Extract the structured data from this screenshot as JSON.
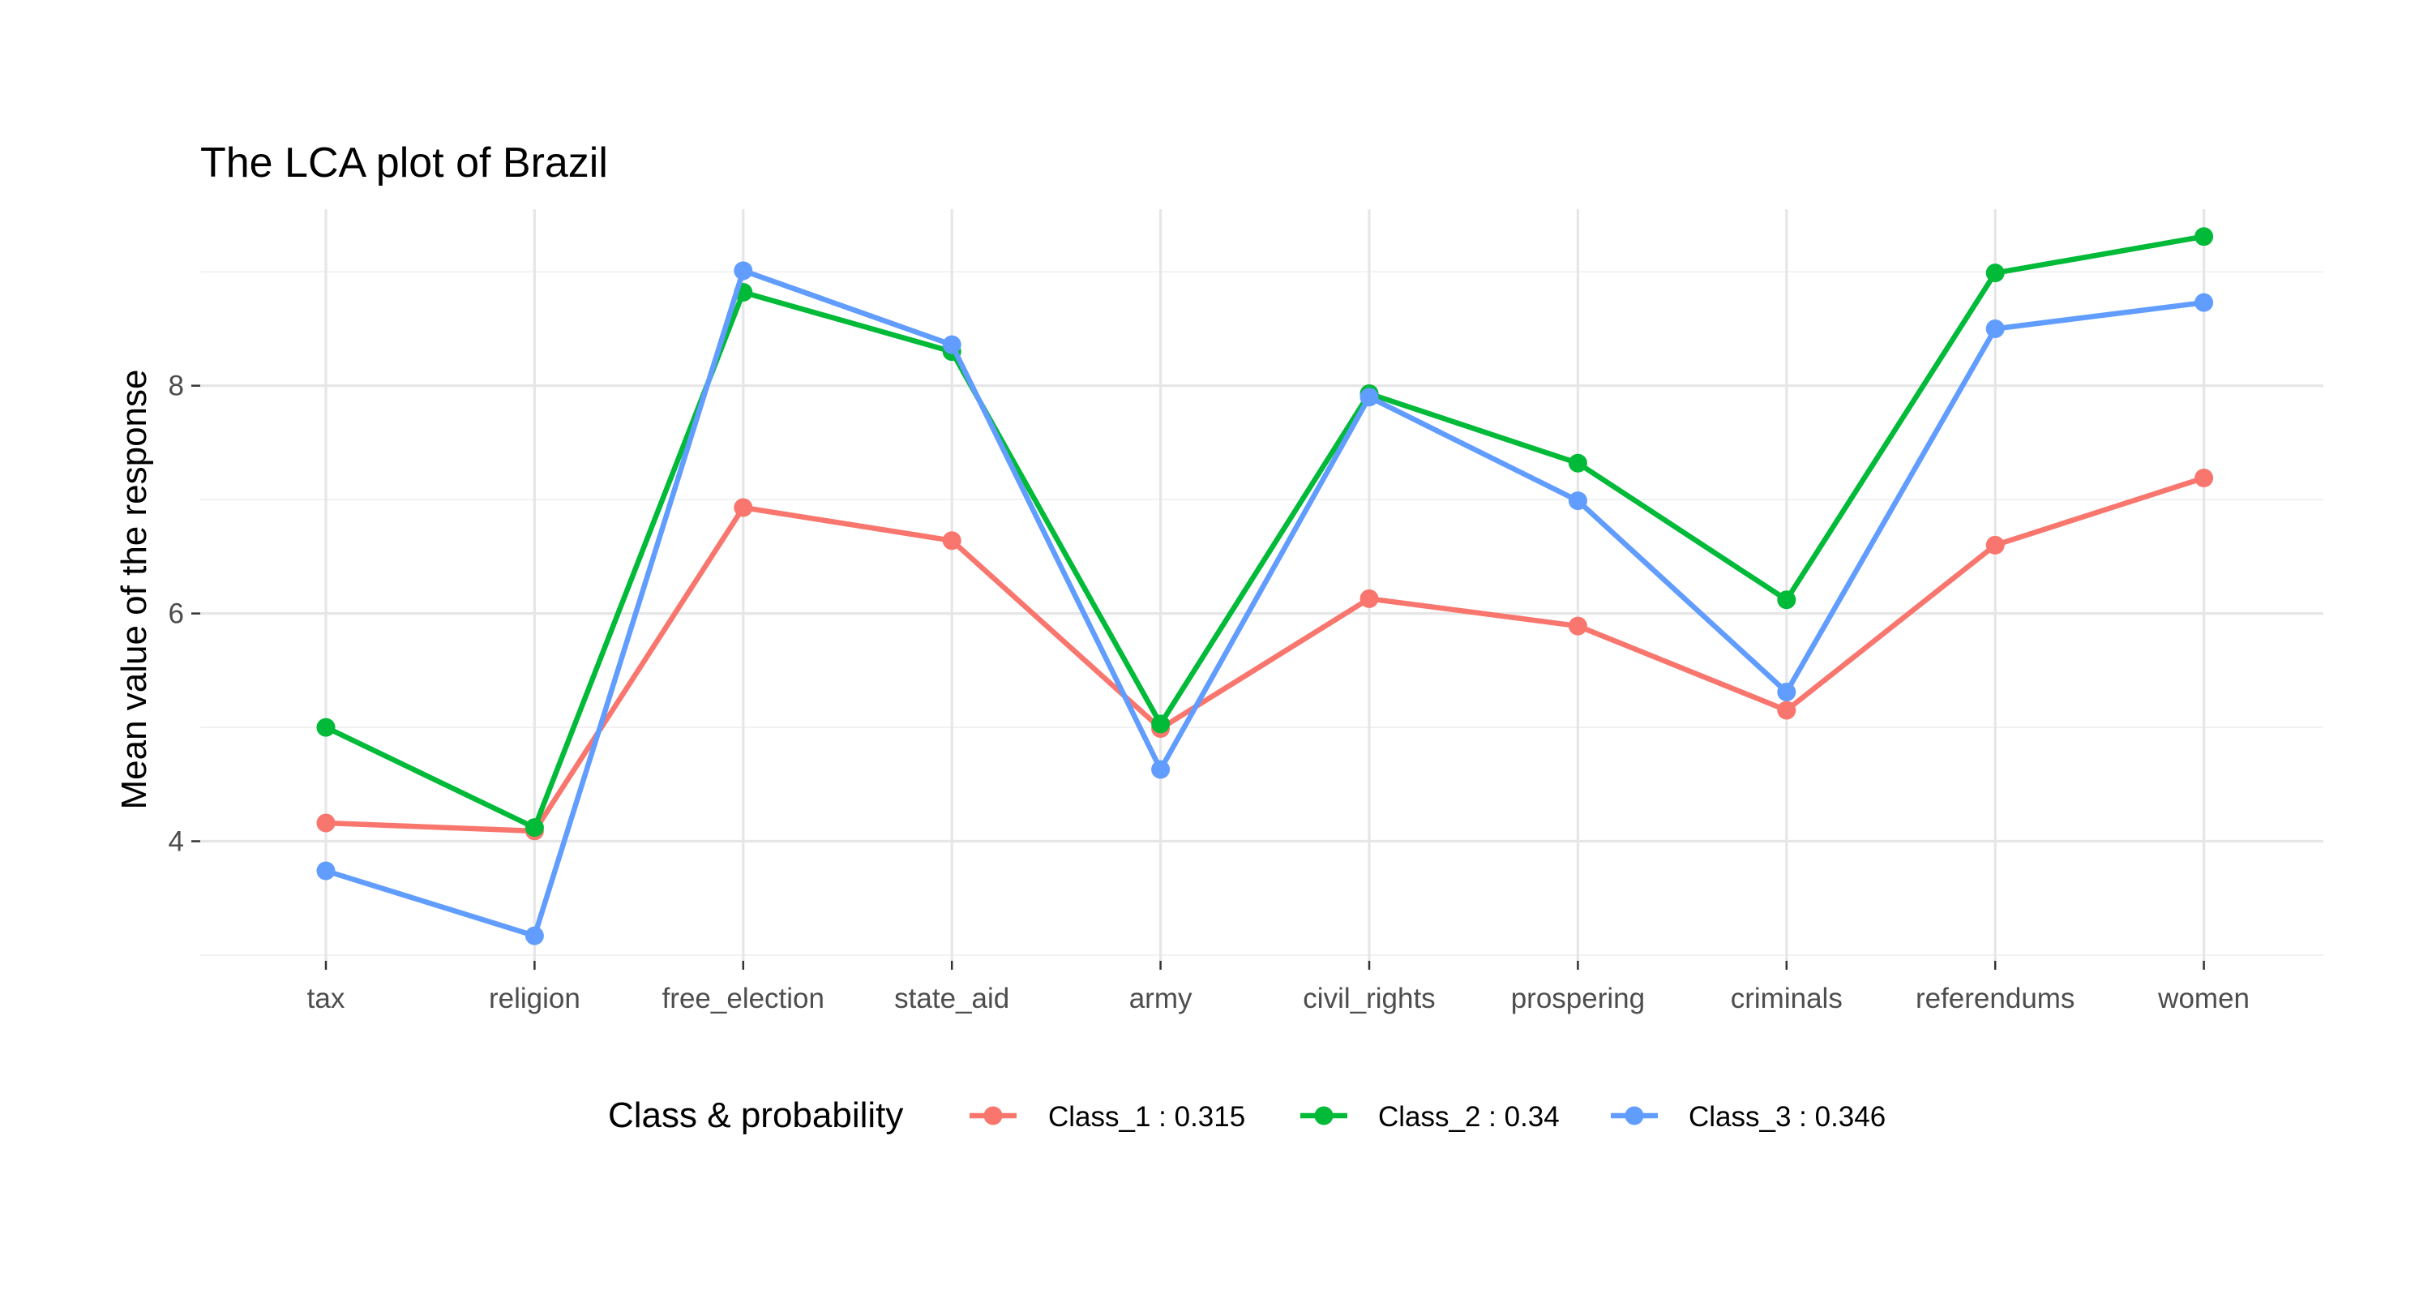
{
  "chart_data": {
    "type": "line",
    "title": "The LCA plot of Brazil",
    "xlabel": "",
    "ylabel": "Mean value of the response",
    "categories": [
      "tax",
      "religion",
      "free_election",
      "state_aid",
      "army",
      "civil_rights",
      "prospering",
      "criminals",
      "referendums",
      "women"
    ],
    "ylim": [
      2.95,
      9.55
    ],
    "yticks": [
      4,
      6,
      8
    ],
    "ytick_labels": [
      "4",
      "6",
      "8"
    ],
    "grid": true,
    "legend": {
      "title": "Class & probability",
      "position": "bottom"
    },
    "series": [
      {
        "name": "Class_1 : 0.315",
        "color": "#F8766D",
        "values": [
          4.16,
          4.09,
          6.93,
          6.64,
          4.99,
          6.13,
          5.89,
          5.15,
          6.6,
          7.19
        ]
      },
      {
        "name": "Class_2 : 0.34",
        "color": "#00BA38",
        "values": [
          5.0,
          4.12,
          8.82,
          8.3,
          5.03,
          7.93,
          7.32,
          6.12,
          8.99,
          9.31
        ]
      },
      {
        "name": "Class_3 : 0.346",
        "color": "#619CFF",
        "values": [
          3.74,
          3.17,
          9.01,
          8.36,
          4.63,
          7.9,
          6.99,
          5.31,
          8.5,
          8.73
        ]
      }
    ]
  }
}
